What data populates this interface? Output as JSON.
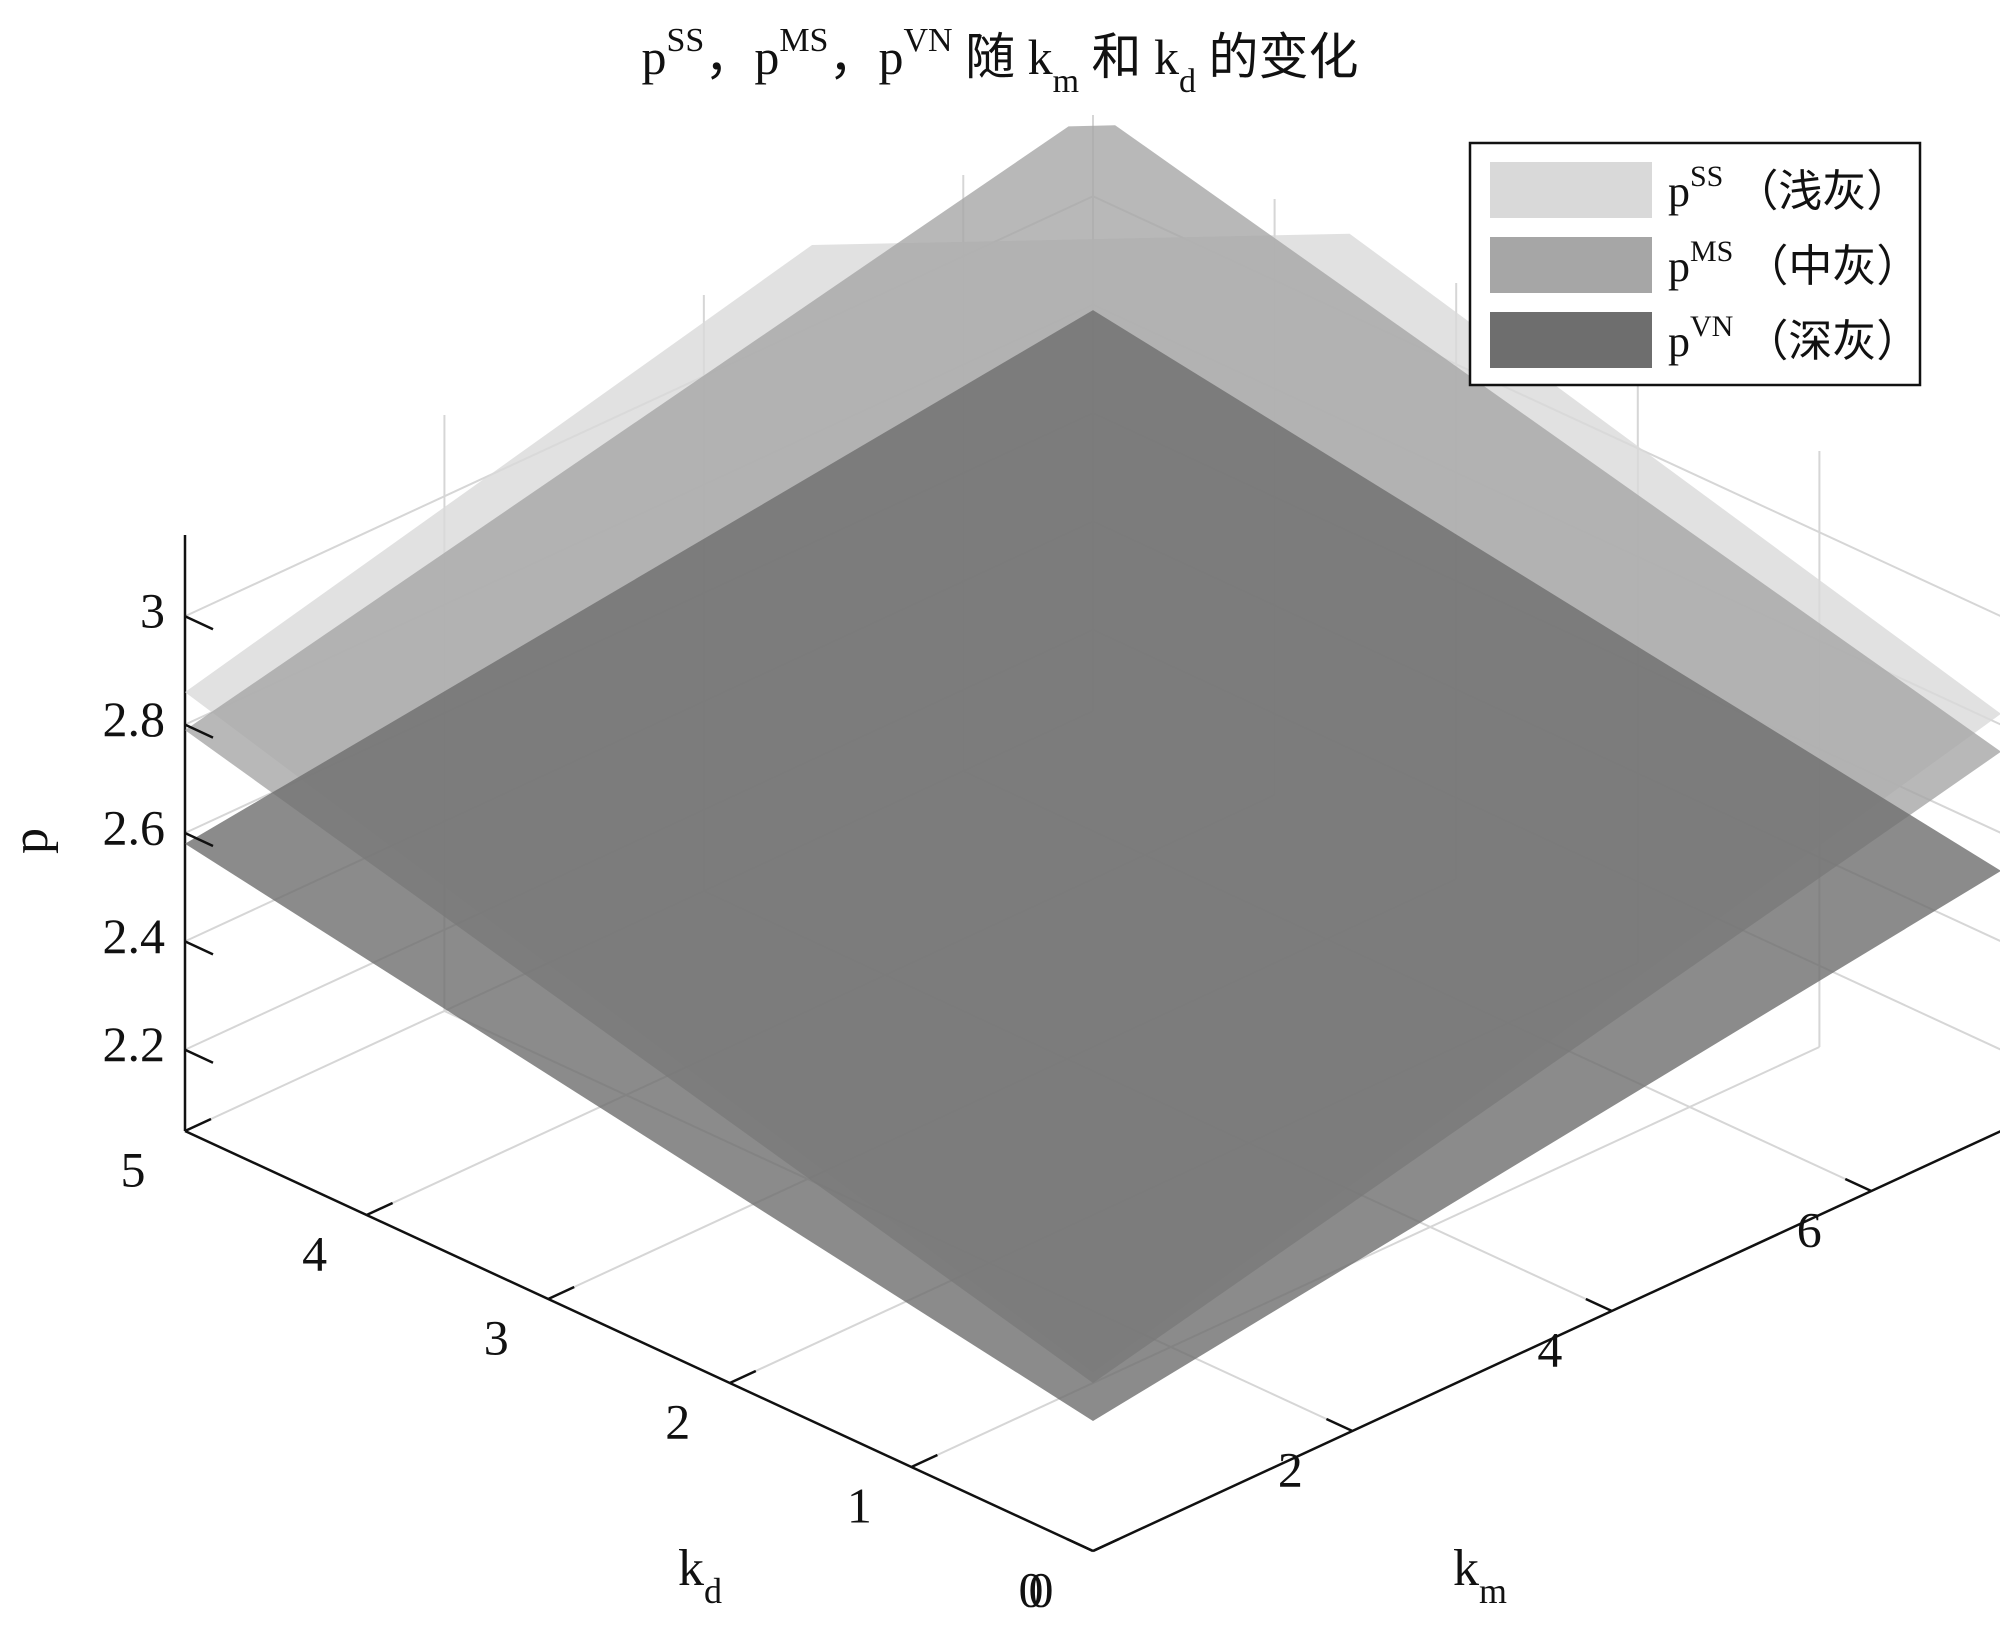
{
  "chart_data": {
    "type": "surface3d",
    "title": {
      "parts": [
        {
          "text": "p",
          "sup": "SS"
        },
        {
          "text": "，"
        },
        {
          "text": "p",
          "sup": "MS"
        },
        {
          "text": "，"
        },
        {
          "text": "p",
          "sup": "VN"
        },
        {
          "text": " 随 "
        },
        {
          "text": "k",
          "sub": "m"
        },
        {
          "text": " 和 "
        },
        {
          "text": "k",
          "sub": "d"
        },
        {
          "text": " 的变化"
        }
      ]
    },
    "xlabel": {
      "text": "k",
      "sub": "m"
    },
    "ylabel": {
      "text": "k",
      "sub": "d"
    },
    "zlabel": "p",
    "xlim": [
      0,
      7
    ],
    "ylim": [
      0,
      5
    ],
    "zlim": [
      2.05,
      3.15
    ],
    "xticks": [
      "0",
      "2",
      "4",
      "6"
    ],
    "xtick_values": [
      0,
      2,
      4,
      6
    ],
    "yticks": [
      "0",
      "1",
      "2",
      "3",
      "4",
      "5"
    ],
    "ytick_values": [
      0,
      1,
      2,
      3,
      4,
      5
    ],
    "zticks": [
      "2.2",
      "2.4",
      "2.6",
      "2.8",
      "3"
    ],
    "ztick_values": [
      2.2,
      2.4,
      2.6,
      2.8,
      3.0
    ],
    "grid": true,
    "legend_position": "top-right",
    "series": [
      {
        "name": "SS",
        "sup": "SS",
        "legend_suffix": "（浅灰）",
        "color": "#d9d9d9",
        "z_corners": {
          "km0_kd0": 2.38,
          "km7_kd0": 2.82,
          "km0_kd5": 2.86,
          "km7_kd5": 3.28
        }
      },
      {
        "name": "MS",
        "sup": "MS",
        "legend_suffix": "（中灰）",
        "color": "#a6a6a6",
        "z_corners": {
          "km0_kd0": 2.36,
          "km7_kd0": 2.75,
          "km0_kd5": 2.79,
          "km7_kd5": 3.16
        }
      },
      {
        "name": "VN",
        "sup": "VN",
        "legend_suffix": "（深灰）",
        "color": "#6e6e6e",
        "z_corners": {
          "km0_kd0": 2.29,
          "km7_kd0": 2.53,
          "km0_kd5": 2.58,
          "km7_kd5": 2.79
        }
      }
    ]
  }
}
